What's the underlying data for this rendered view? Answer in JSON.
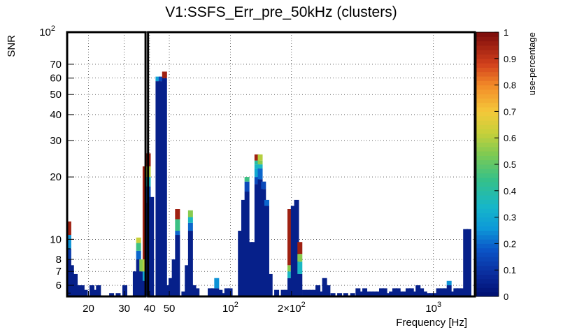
{
  "chart_data": {
    "type": "heatmap",
    "title": "V1:SSFS_Err_pre_50kHz (clusters)",
    "xlabel": "Frequency [Hz]",
    "ylabel": "SNR",
    "zlabel": "use-percentage",
    "xscale": "log",
    "yscale": "log",
    "xlim": [
      15.7,
      1600
    ],
    "ylim": [
      5.3,
      100
    ],
    "zlim": [
      0,
      1
    ],
    "x_tick_labels": [
      {
        "value": 20,
        "label": "20"
      },
      {
        "value": 30,
        "label": "30"
      },
      {
        "value": 40,
        "label": "40"
      },
      {
        "value": 50,
        "label": "50"
      },
      {
        "value": 100,
        "label": "10",
        "exp": "2"
      },
      {
        "value": 200,
        "label": "2×10",
        "exp": "2"
      },
      {
        "value": 1000,
        "label": "10",
        "exp": "3"
      }
    ],
    "y_tick_labels": [
      {
        "value": 6,
        "label": "6"
      },
      {
        "value": 7,
        "label": "7"
      },
      {
        "value": 8,
        "label": "8"
      },
      {
        "value": 10,
        "label": "10"
      },
      {
        "value": 20,
        "label": "20"
      },
      {
        "value": 30,
        "label": "30"
      },
      {
        "value": 40,
        "label": "40"
      },
      {
        "value": 50,
        "label": "50"
      },
      {
        "value": 60,
        "label": "60"
      },
      {
        "value": 70,
        "label": "70"
      },
      {
        "value": 100,
        "label": "10",
        "exp": "2"
      }
    ],
    "z_tick_labels": [
      "0",
      "0.1",
      "0.2",
      "0.3",
      "0.4",
      "0.5",
      "0.6",
      "0.7",
      "0.8",
      "0.9",
      "1"
    ],
    "columns_description": "each entry: frequency bin center (Hz), top SNR of column, optional [snr,z] color bands from bottom up (last entry applies up to top)",
    "columns": [
      {
        "f": 16.0,
        "top": 12.2,
        "bands": [
          [
            5.3,
            0.05
          ],
          [
            8.0,
            0.12
          ],
          [
            9.0,
            0.25
          ],
          [
            10.5,
            0.95
          ]
        ]
      },
      {
        "f": 16.5,
        "top": 7.5,
        "bands": [
          [
            5.3,
            0.05
          ]
        ]
      },
      {
        "f": 17.2,
        "top": 6.8,
        "bands": [
          [
            5.3,
            0.05
          ]
        ]
      },
      {
        "f": 17.9,
        "top": 6.0,
        "bands": [
          [
            5.3,
            0.05
          ]
        ]
      },
      {
        "f": 18.6,
        "top": 6.0,
        "bands": [
          [
            5.3,
            0.05
          ]
        ]
      },
      {
        "f": 19.3,
        "top": 5.7,
        "bands": [
          [
            5.3,
            0.05
          ]
        ]
      },
      {
        "f": 20.8,
        "top": 6.0,
        "bands": [
          [
            5.3,
            0.05
          ]
        ]
      },
      {
        "f": 21.6,
        "top": 5.7,
        "bands": [
          [
            5.3,
            0.05
          ]
        ]
      },
      {
        "f": 22.4,
        "top": 6.0,
        "bands": [
          [
            5.3,
            0.05
          ]
        ]
      },
      {
        "f": 26.0,
        "top": 5.5,
        "bands": [
          [
            5.3,
            0.05
          ]
        ]
      },
      {
        "f": 28.0,
        "top": 5.5,
        "bands": [
          [
            5.3,
            0.05
          ]
        ]
      },
      {
        "f": 30.2,
        "top": 6.0,
        "bands": [
          [
            5.3,
            0.05
          ]
        ]
      },
      {
        "f": 34.0,
        "top": 7.0,
        "bands": [
          [
            5.3,
            0.05
          ]
        ]
      },
      {
        "f": 35.3,
        "top": 10.2,
        "bands": [
          [
            5.3,
            0.05
          ],
          [
            8.0,
            0.2
          ],
          [
            8.8,
            0.45
          ],
          [
            9.6,
            0.62
          ]
        ]
      },
      {
        "f": 36.6,
        "top": 8.0,
        "bands": [
          [
            5.3,
            0.05
          ],
          [
            7.0,
            0.55
          ]
        ]
      },
      {
        "f": 38.0,
        "top": 22.5,
        "bands": [
          [
            5.3,
            0.05
          ],
          [
            6.3,
            0.3
          ],
          [
            7.0,
            0.6
          ],
          [
            8.0,
            0.95
          ]
        ]
      },
      {
        "f": 39.4,
        "top": 26.0,
        "bands": [
          [
            5.3,
            0.05
          ],
          [
            15.0,
            0.15
          ],
          [
            18.0,
            0.35
          ],
          [
            20.0,
            0.6
          ],
          [
            22.5,
            0.95
          ]
        ]
      },
      {
        "f": 40.9,
        "top": 16.0,
        "bands": [
          [
            5.3,
            0.05
          ]
        ]
      },
      {
        "f": 44.0,
        "top": 61.0,
        "bands": [
          [
            5.3,
            0.05
          ],
          [
            58.0,
            0.28
          ]
        ]
      },
      {
        "f": 45.6,
        "top": 61.0,
        "bands": [
          [
            5.3,
            0.05
          ],
          [
            58.0,
            0.15
          ]
        ]
      },
      {
        "f": 47.4,
        "top": 64.5,
        "bands": [
          [
            5.3,
            0.05
          ],
          [
            60.0,
            0.95
          ]
        ]
      },
      {
        "f": 49.1,
        "top": 6.0,
        "bands": [
          [
            5.3,
            0.05
          ]
        ]
      },
      {
        "f": 51.0,
        "top": 6.5,
        "bands": [
          [
            5.3,
            0.05
          ]
        ]
      },
      {
        "f": 52.9,
        "top": 8.0,
        "bands": [
          [
            5.3,
            0.05
          ]
        ]
      },
      {
        "f": 54.9,
        "top": 14.0,
        "bands": [
          [
            5.3,
            0.05
          ],
          [
            10.5,
            0.2
          ],
          [
            11.0,
            0.45
          ],
          [
            12.5,
            0.95
          ]
        ]
      },
      {
        "f": 59.0,
        "top": 5.6,
        "bands": [
          [
            5.3,
            0.05
          ]
        ]
      },
      {
        "f": 61.3,
        "top": 7.5,
        "bands": [
          [
            5.3,
            0.05
          ]
        ]
      },
      {
        "f": 63.6,
        "top": 13.8,
        "bands": [
          [
            5.3,
            0.05
          ],
          [
            11.0,
            0.2
          ],
          [
            12.0,
            0.35
          ],
          [
            12.8,
            0.55
          ]
        ]
      },
      {
        "f": 66.0,
        "top": 6.0,
        "bands": [
          [
            5.3,
            0.05
          ]
        ]
      },
      {
        "f": 68.5,
        "top": 5.8,
        "bands": [
          [
            5.3,
            0.05
          ]
        ]
      },
      {
        "f": 79.5,
        "top": 5.8,
        "bands": [
          [
            5.3,
            0.05
          ]
        ]
      },
      {
        "f": 82.5,
        "top": 5.8,
        "bands": [
          [
            5.3,
            0.05
          ]
        ]
      },
      {
        "f": 85.6,
        "top": 6.5,
        "bands": [
          [
            5.3,
            0.05
          ],
          [
            5.8,
            0.25
          ]
        ]
      },
      {
        "f": 89.0,
        "top": 5.7,
        "bands": [
          [
            5.3,
            0.05
          ]
        ]
      },
      {
        "f": 92.4,
        "top": 5.5,
        "bands": [
          [
            5.3,
            0.05
          ]
        ]
      },
      {
        "f": 96.0,
        "top": 5.8,
        "bands": [
          [
            5.3,
            0.05
          ]
        ]
      },
      {
        "f": 99.7,
        "top": 5.8,
        "bands": [
          [
            5.3,
            0.05
          ]
        ]
      },
      {
        "f": 112.0,
        "top": 11.0,
        "bands": [
          [
            5.3,
            0.05
          ]
        ]
      },
      {
        "f": 116.3,
        "top": 15.5,
        "bands": [
          [
            5.3,
            0.05
          ]
        ]
      },
      {
        "f": 120.7,
        "top": 20.0,
        "bands": [
          [
            5.3,
            0.05
          ],
          [
            17.0,
            0.15
          ],
          [
            19.0,
            0.45
          ]
        ]
      },
      {
        "f": 125.3,
        "top": 9.7,
        "bands": [
          [
            5.3,
            0.05
          ]
        ]
      },
      {
        "f": 130.1,
        "top": 9.7,
        "bands": [
          [
            5.3,
            0.05
          ]
        ]
      },
      {
        "f": 135.1,
        "top": 25.7,
        "bands": [
          [
            5.3,
            0.05
          ],
          [
            18.5,
            0.15
          ],
          [
            20.0,
            0.3
          ],
          [
            22.0,
            0.35
          ],
          [
            23.0,
            0.4
          ],
          [
            24.0,
            0.95
          ]
        ]
      },
      {
        "f": 140.2,
        "top": 25.7,
        "bands": [
          [
            5.3,
            0.05
          ],
          [
            19.5,
            0.2
          ],
          [
            22.0,
            0.35
          ],
          [
            23.0,
            0.55
          ],
          [
            24.0,
            0.6
          ]
        ]
      },
      {
        "f": 145.6,
        "top": 19.0,
        "bands": [
          [
            5.3,
            0.05
          ],
          [
            17.5,
            0.15
          ]
        ]
      },
      {
        "f": 151.1,
        "top": 15.5,
        "bands": [
          [
            5.3,
            0.05
          ],
          [
            14.5,
            0.2
          ]
        ]
      },
      {
        "f": 156.9,
        "top": 6.8,
        "bands": [
          [
            5.3,
            0.05
          ]
        ]
      },
      {
        "f": 169.0,
        "top": 5.7,
        "bands": [
          [
            5.3,
            0.05
          ]
        ]
      },
      {
        "f": 182.2,
        "top": 5.7,
        "bands": [
          [
            5.3,
            0.05
          ]
        ]
      },
      {
        "f": 189.2,
        "top": 5.7,
        "bands": [
          [
            5.3,
            0.05
          ]
        ]
      },
      {
        "f": 196.4,
        "top": 14.0,
        "bands": [
          [
            5.3,
            0.05
          ],
          [
            6.5,
            0.35
          ],
          [
            7.0,
            0.55
          ],
          [
            7.5,
            0.95
          ]
        ]
      },
      {
        "f": 204.0,
        "top": 14.5,
        "bands": [
          [
            5.3,
            0.05
          ]
        ]
      },
      {
        "f": 211.8,
        "top": 15.5,
        "bands": [
          [
            5.3,
            0.05
          ]
        ]
      },
      {
        "f": 219.9,
        "top": 9.7,
        "bands": [
          [
            5.3,
            0.05
          ],
          [
            6.8,
            0.35
          ],
          [
            7.8,
            0.55
          ],
          [
            8.5,
            0.95
          ]
        ]
      },
      {
        "f": 232.0,
        "top": 5.7,
        "bands": [
          [
            5.3,
            0.05
          ]
        ]
      },
      {
        "f": 241.0,
        "top": 5.7,
        "bands": [
          [
            5.3,
            0.05
          ]
        ]
      },
      {
        "f": 250.2,
        "top": 5.7,
        "bands": [
          [
            5.3,
            0.05
          ]
        ]
      },
      {
        "f": 259.8,
        "top": 5.7,
        "bands": [
          [
            5.3,
            0.05
          ]
        ]
      },
      {
        "f": 269.8,
        "top": 6.0,
        "bands": [
          [
            5.3,
            0.05
          ]
        ]
      },
      {
        "f": 280.2,
        "top": 5.6,
        "bands": [
          [
            5.3,
            0.05
          ]
        ]
      },
      {
        "f": 291.0,
        "top": 6.5,
        "bands": [
          [
            5.3,
            0.05
          ]
        ]
      },
      {
        "f": 302.2,
        "top": 6.0,
        "bands": [
          [
            5.3,
            0.05
          ]
        ]
      },
      {
        "f": 320.0,
        "top": 5.5,
        "bands": [
          [
            5.3,
            0.05
          ]
        ]
      },
      {
        "f": 345.0,
        "top": 5.5,
        "bands": [
          [
            5.3,
            0.05
          ]
        ]
      },
      {
        "f": 370.0,
        "top": 5.5,
        "bands": [
          [
            5.3,
            0.05
          ]
        ]
      },
      {
        "f": 400.0,
        "top": 5.5,
        "bands": [
          [
            5.3,
            0.05
          ]
        ]
      },
      {
        "f": 425.0,
        "top": 5.8,
        "bands": [
          [
            5.3,
            0.05
          ]
        ]
      },
      {
        "f": 442.0,
        "top": 5.6,
        "bands": [
          [
            5.3,
            0.05
          ]
        ]
      },
      {
        "f": 459.0,
        "top": 5.8,
        "bands": [
          [
            5.3,
            0.05
          ]
        ]
      },
      {
        "f": 476.0,
        "top": 5.6,
        "bands": [
          [
            5.3,
            0.05
          ]
        ]
      },
      {
        "f": 495.0,
        "top": 5.6,
        "bands": [
          [
            5.3,
            0.05
          ]
        ]
      },
      {
        "f": 514.0,
        "top": 5.6,
        "bands": [
          [
            5.3,
            0.05
          ]
        ]
      },
      {
        "f": 534.0,
        "top": 5.6,
        "bands": [
          [
            5.3,
            0.05
          ]
        ]
      },
      {
        "f": 555.0,
        "top": 5.8,
        "bands": [
          [
            5.3,
            0.05
          ]
        ]
      },
      {
        "f": 576.0,
        "top": 5.8,
        "bands": [
          [
            5.3,
            0.05
          ]
        ]
      },
      {
        "f": 598.0,
        "top": 5.5,
        "bands": [
          [
            5.3,
            0.05
          ]
        ]
      },
      {
        "f": 621.0,
        "top": 5.6,
        "bands": [
          [
            5.3,
            0.05
          ]
        ]
      },
      {
        "f": 645.0,
        "top": 5.8,
        "bands": [
          [
            5.3,
            0.05
          ]
        ]
      },
      {
        "f": 670.0,
        "top": 5.8,
        "bands": [
          [
            5.3,
            0.05
          ]
        ]
      },
      {
        "f": 696.0,
        "top": 5.6,
        "bands": [
          [
            5.3,
            0.05
          ]
        ]
      },
      {
        "f": 722.0,
        "top": 5.6,
        "bands": [
          [
            5.3,
            0.05
          ]
        ]
      },
      {
        "f": 750.0,
        "top": 5.8,
        "bands": [
          [
            5.3,
            0.05
          ]
        ]
      },
      {
        "f": 779.0,
        "top": 5.8,
        "bands": [
          [
            5.3,
            0.05
          ]
        ]
      },
      {
        "f": 809.0,
        "top": 5.6,
        "bands": [
          [
            5.3,
            0.05
          ]
        ]
      },
      {
        "f": 840.0,
        "top": 6.0,
        "bands": [
          [
            5.3,
            0.05
          ]
        ]
      },
      {
        "f": 873.0,
        "top": 5.8,
        "bands": [
          [
            5.3,
            0.05
          ]
        ]
      },
      {
        "f": 906.0,
        "top": 5.6,
        "bands": [
          [
            5.3,
            0.05
          ]
        ]
      },
      {
        "f": 941.0,
        "top": 5.5,
        "bands": [
          [
            5.3,
            0.05
          ]
        ]
      },
      {
        "f": 977.0,
        "top": 5.5,
        "bands": [
          [
            5.3,
            0.05
          ]
        ]
      },
      {
        "f": 1015.0,
        "top": 5.5,
        "bands": [
          [
            5.3,
            0.05
          ]
        ]
      },
      {
        "f": 1060.0,
        "top": 5.8,
        "bands": [
          [
            5.3,
            0.05
          ]
        ]
      },
      {
        "f": 1110.0,
        "top": 5.8,
        "bands": [
          [
            5.3,
            0.05
          ]
        ]
      },
      {
        "f": 1150.0,
        "top": 5.8,
        "bands": [
          [
            5.3,
            0.05
          ]
        ]
      },
      {
        "f": 1195.0,
        "top": 6.3,
        "bands": [
          [
            5.3,
            0.05
          ],
          [
            6.0,
            0.25
          ]
        ]
      },
      {
        "f": 1240.0,
        "top": 5.6,
        "bands": [
          [
            5.3,
            0.05
          ]
        ]
      },
      {
        "f": 1290.0,
        "top": 5.8,
        "bands": [
          [
            5.3,
            0.05
          ]
        ]
      },
      {
        "f": 1335.0,
        "top": 5.8,
        "bands": [
          [
            5.3,
            0.05
          ]
        ]
      },
      {
        "f": 1390.0,
        "top": 5.8,
        "bands": [
          [
            5.3,
            0.05
          ]
        ]
      },
      {
        "f": 1440.0,
        "top": 11.2,
        "bands": [
          [
            5.3,
            0.05
          ]
        ]
      },
      {
        "f": 1495.0,
        "top": 11.2,
        "bands": [
          [
            5.3,
            0.05
          ]
        ]
      }
    ],
    "annotations": [
      {
        "type": "rectangle",
        "x": [
          15.7,
          38.2
        ],
        "y": [
          5.3,
          100
        ],
        "color": "#000000"
      },
      {
        "type": "rectangle",
        "x": [
          39.3,
          1600
        ],
        "y": [
          5.3,
          100
        ],
        "color": "#000000"
      }
    ]
  }
}
